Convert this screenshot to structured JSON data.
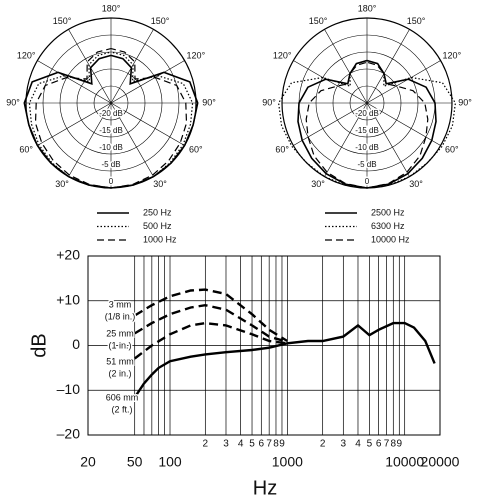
{
  "chart_data": [
    {
      "type": "polar",
      "theta": [
        0,
        15,
        30,
        45,
        60,
        75,
        90,
        105,
        120,
        135,
        150,
        165,
        180
      ],
      "rlim": [
        -25,
        0
      ],
      "rticks": [
        {
          "value": -20,
          "label": "-20 dB"
        },
        {
          "value": -15,
          "label": "-15 dB"
        },
        {
          "value": -10,
          "label": "-10 dB"
        },
        {
          "value": -5,
          "label": "-5 dB"
        },
        0
      ],
      "thetaticks": [
        {
          "value": 30,
          "label": "30°"
        },
        {
          "value": 60,
          "label": "60°"
        },
        {
          "value": 90,
          "label": "90°"
        },
        {
          "value": 120,
          "label": "120°"
        },
        {
          "value": 150,
          "label": "150°"
        },
        {
          "value": 180,
          "label": "180°"
        },
        {
          "value": 210,
          "label": "150°"
        },
        {
          "value": 240,
          "label": "120°"
        },
        {
          "value": 270,
          "label": "90°"
        },
        {
          "value": 300,
          "label": "60°"
        },
        {
          "value": 330,
          "label": "30°"
        }
      ],
      "series": [
        {
          "name": "250 Hz",
          "color": "#000000",
          "dash": "solid",
          "values": [
            0,
            0,
            0,
            0,
            0,
            0,
            0.5,
            -1,
            -7,
            -17,
            -13,
            -11.5,
            -11
          ]
        },
        {
          "name": "500 Hz",
          "color": "#000000",
          "dash": "dotted",
          "values": [
            0,
            0,
            0,
            -0.3,
            -0.5,
            -0.8,
            -1,
            -3,
            -9,
            -16,
            -12,
            -10.5,
            -10
          ]
        },
        {
          "name": "1000 Hz",
          "color": "#000000",
          "dash": "dashed",
          "values": [
            0,
            -0.2,
            -0.5,
            -1,
            -1.5,
            -2,
            -3,
            -5,
            -10,
            -15,
            -11,
            -9.5,
            -9
          ]
        }
      ]
    },
    {
      "type": "polar",
      "theta": [
        0,
        15,
        30,
        45,
        60,
        75,
        90,
        105,
        120,
        135,
        150,
        165,
        180
      ],
      "rlim": [
        -25,
        0
      ],
      "rticks": [
        {
          "value": -20,
          "label": "-20 dB"
        },
        {
          "value": -15,
          "label": "-15 dB"
        },
        {
          "value": -10,
          "label": "-10 dB"
        },
        {
          "value": -5,
          "label": "-5 dB"
        },
        0
      ],
      "thetaticks": [
        {
          "value": 30,
          "label": "30°"
        },
        {
          "value": 60,
          "label": "60°"
        },
        {
          "value": 90,
          "label": "90°"
        },
        {
          "value": 120,
          "label": "120°"
        },
        {
          "value": 150,
          "label": "150°"
        },
        {
          "value": 180,
          "label": "180°"
        },
        {
          "value": 210,
          "label": "150°"
        },
        {
          "value": 240,
          "label": "120°"
        },
        {
          "value": 270,
          "label": "90°"
        },
        {
          "value": 300,
          "label": "60°"
        },
        {
          "value": 330,
          "label": "30°"
        }
      ],
      "series": [
        {
          "name": "2500 Hz",
          "color": "#000000",
          "dash": "solid",
          "values": [
            0,
            -0.3,
            -1,
            -2,
            -3,
            -4,
            -5,
            -7,
            -11,
            -17,
            -15,
            -13,
            -12.5
          ]
        },
        {
          "name": "6300 Hz",
          "color": "#000000",
          "dash": "dotted",
          "values": [
            0,
            0,
            0,
            0,
            0.5,
            1,
            1,
            -2,
            -10,
            -18,
            -15,
            -13,
            -12.5
          ]
        },
        {
          "name": "10000 Hz",
          "color": "#000000",
          "dash": "dashed",
          "values": [
            0,
            -0.5,
            -1.5,
            -3,
            -5,
            -6.5,
            -8,
            -11,
            -15,
            -17,
            -15,
            -13.5,
            -13
          ]
        }
      ]
    },
    {
      "type": "line",
      "x_label": "Hz",
      "y_label": "dB",
      "xscale": "log",
      "grid": true,
      "xlim": [
        20,
        20000
      ],
      "ylim": [
        -20,
        20
      ],
      "xticks": [
        20,
        50,
        100,
        {
          "value": 200,
          "label": "2"
        },
        {
          "value": 300,
          "label": "3"
        },
        {
          "value": 400,
          "label": "4"
        },
        {
          "value": 500,
          "label": "5"
        },
        {
          "value": 600,
          "label": "6"
        },
        {
          "value": 700,
          "label": "7"
        },
        {
          "value": 800,
          "label": "8"
        },
        {
          "value": 900,
          "label": "9"
        },
        1000,
        {
          "value": 2000,
          "label": "2"
        },
        {
          "value": 3000,
          "label": "3"
        },
        {
          "value": 4000,
          "label": "4"
        },
        {
          "value": 5000,
          "label": "5"
        },
        {
          "value": 6000,
          "label": "6"
        },
        {
          "value": 7000,
          "label": "7"
        },
        {
          "value": 8000,
          "label": "8"
        },
        {
          "value": 9000,
          "label": "9"
        },
        10000,
        20000
      ],
      "xminor": [
        60,
        70,
        80,
        90
      ],
      "yticks": [
        {
          "value": 20,
          "label": "+20"
        },
        {
          "value": 10,
          "label": "+10"
        },
        0,
        {
          "value": -10,
          "label": "–10"
        },
        {
          "value": -20,
          "label": "–20"
        }
      ],
      "series": [
        {
          "name": "3 mm",
          "note": "(1/8 in.)",
          "color": "#000000",
          "dash": "dashed",
          "x": [
            50,
            70,
            100,
            150,
            200,
            300,
            500,
            700,
            1000
          ],
          "values": [
            6.7,
            9,
            11,
            12.3,
            12.5,
            11.5,
            7,
            3.5,
            1
          ]
        },
        {
          "name": "25 mm",
          "note": "(1 in.)",
          "color": "#000000",
          "dash": "dashed",
          "x": [
            50,
            70,
            100,
            150,
            200,
            300,
            500,
            700,
            1000
          ],
          "values": [
            2.7,
            5,
            7,
            8.5,
            9,
            8,
            4.5,
            2,
            0.8
          ]
        },
        {
          "name": "51 mm",
          "note": "(2 in.)",
          "color": "#000000",
          "dash": "dashed",
          "x": [
            50,
            70,
            100,
            150,
            200,
            300,
            500,
            700,
            1000
          ],
          "values": [
            -2.9,
            0,
            2.5,
            4.5,
            5,
            4.5,
            2.5,
            1,
            0.5
          ]
        },
        {
          "name": "606 mm",
          "note": "(2 ft.)",
          "color": "#000000",
          "dash": "solid",
          "x": [
            50,
            60,
            70,
            80,
            100,
            150,
            200,
            300,
            500,
            700,
            1000,
            1500,
            2000,
            3000,
            4000,
            5000,
            6000,
            8000,
            10000,
            12000,
            15000,
            18000
          ],
          "values": [
            -11.6,
            -8.5,
            -6.5,
            -5,
            -3.5,
            -2.5,
            -2,
            -1.5,
            -1,
            -0.5,
            0.5,
            1,
            1,
            2,
            4.5,
            2.3,
            3.5,
            5,
            5,
            4,
            1,
            -4
          ]
        }
      ]
    }
  ]
}
